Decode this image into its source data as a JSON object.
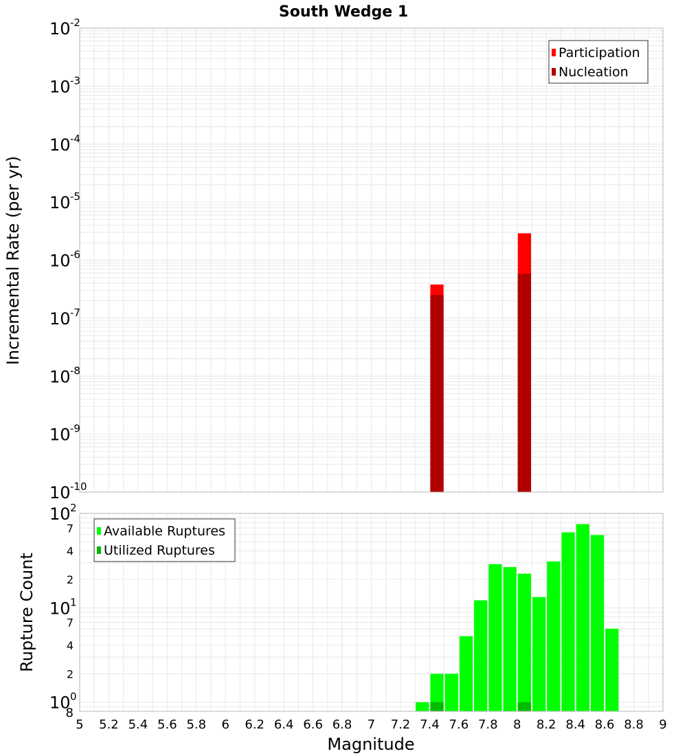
{
  "title": "South Wedge 1",
  "chart_data": [
    {
      "type": "bar",
      "scale": "log",
      "ylabel": "Incremental Rate (per yr)",
      "xlabel": "",
      "xlim": [
        5,
        9
      ],
      "ylim": [
        1e-10,
        0.01
      ],
      "grid": true,
      "legend_position": "top-right",
      "y_major_ticks": [
        {
          "base": "10",
          "exp": "-10"
        },
        {
          "base": "10",
          "exp": "-9"
        },
        {
          "base": "10",
          "exp": "-8"
        },
        {
          "base": "10",
          "exp": "-7"
        },
        {
          "base": "10",
          "exp": "-6"
        },
        {
          "base": "10",
          "exp": "-5"
        },
        {
          "base": "10",
          "exp": "-4"
        },
        {
          "base": "10",
          "exp": "-3"
        },
        {
          "base": "10",
          "exp": "-2"
        }
      ],
      "bar_width": 0.1,
      "series": [
        {
          "name": "Participation",
          "color": "#ff0000",
          "x": [
            7.45,
            8.05
          ],
          "values": [
            3.8e-07,
            2.9e-06
          ]
        },
        {
          "name": "Nucleation",
          "color": "#b00000",
          "x": [
            7.45,
            8.05
          ],
          "values": [
            2.5e-07,
            5.8e-07
          ]
        }
      ]
    },
    {
      "type": "bar",
      "scale": "log",
      "ylabel": "Rupture Count",
      "xlabel": "Magnitude",
      "xlim": [
        5,
        9
      ],
      "ylim": [
        0.8,
        100
      ],
      "grid": true,
      "legend_position": "top-left",
      "y_major_ticks": [
        {
          "base": "10",
          "exp": "0"
        },
        {
          "base": "10",
          "exp": "1"
        },
        {
          "base": "10",
          "exp": "2"
        }
      ],
      "y_minor_labels": [
        "8",
        "2",
        "4",
        "7",
        "2",
        "4",
        "7"
      ],
      "x_ticks": [
        "5",
        "5.2",
        "5.4",
        "5.6",
        "5.8",
        "6",
        "6.2",
        "6.4",
        "6.6",
        "6.8",
        "7",
        "7.2",
        "7.4",
        "7.6",
        "7.8",
        "8",
        "8.2",
        "8.4",
        "8.6",
        "8.8",
        "9"
      ],
      "bar_width": 0.1,
      "series": [
        {
          "name": "Available Ruptures",
          "color": "#00ff00",
          "x": [
            7.35,
            7.45,
            7.55,
            7.65,
            7.75,
            7.85,
            7.95,
            8.05,
            8.15,
            8.25,
            8.35,
            8.45,
            8.55,
            8.65
          ],
          "values": [
            1,
            2,
            2,
            5,
            12,
            29,
            27,
            23,
            13,
            31,
            63,
            77,
            59,
            6
          ]
        },
        {
          "name": "Utilized Ruptures",
          "color": "#00bb00",
          "x": [
            7.45,
            8.05
          ],
          "values": [
            1,
            1
          ]
        }
      ]
    }
  ]
}
